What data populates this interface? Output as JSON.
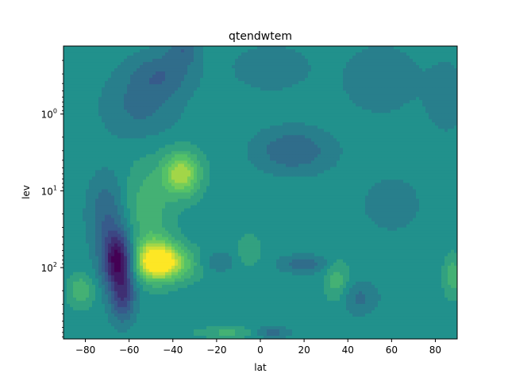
{
  "chart_data": {
    "type": "heatmap",
    "title": "qtendwtem",
    "xlabel": "lat",
    "ylabel": "lev",
    "xlim": [
      -90,
      90
    ],
    "ylim": [
      0.13,
      850
    ],
    "yscale": "log",
    "yaxis_inverted": true,
    "grid": false,
    "legend": "none",
    "colormap": "viridis",
    "colors": {
      "background": "#2a8c8c",
      "low": "#440154",
      "mid_low": "#3b528b",
      "mid": "#21918c",
      "mid_high": "#5ec962",
      "high": "#fde725"
    },
    "x_ticks": [
      {
        "value": -80,
        "label": "−80"
      },
      {
        "value": -60,
        "label": "−60"
      },
      {
        "value": -40,
        "label": "−40"
      },
      {
        "value": -20,
        "label": "−20"
      },
      {
        "value": 0,
        "label": "0"
      },
      {
        "value": 20,
        "label": "20"
      },
      {
        "value": 40,
        "label": "40"
      },
      {
        "value": 60,
        "label": "60"
      },
      {
        "value": 80,
        "label": "80"
      }
    ],
    "y_ticks": [
      {
        "value": 1,
        "base": "10",
        "exp": "0"
      },
      {
        "value": 10,
        "base": "10",
        "exp": "1"
      },
      {
        "value": 100,
        "base": "10",
        "exp": "2"
      }
    ],
    "features": [
      {
        "lat": -65,
        "lev": 80,
        "amp": -1.0,
        "sx": 5,
        "sy": 0.25
      },
      {
        "lat": -63,
        "lev": 250,
        "amp": -0.55,
        "sx": 4,
        "sy": 0.22
      },
      {
        "lat": -70,
        "lev": 20,
        "amp": -0.35,
        "sx": 6,
        "sy": 0.35
      },
      {
        "lat": -48,
        "lev": 80,
        "amp": 0.95,
        "sx": 7,
        "sy": 0.18
      },
      {
        "lat": -40,
        "lev": 90,
        "amp": 0.45,
        "sx": 9,
        "sy": 0.15
      },
      {
        "lat": -36,
        "lev": 6,
        "amp": 0.75,
        "sx": 6,
        "sy": 0.2
      },
      {
        "lat": -52,
        "lev": 18,
        "amp": 0.3,
        "sx": 8,
        "sy": 0.45
      },
      {
        "lat": -45,
        "lev": 0.3,
        "amp": -0.3,
        "sx": 10,
        "sy": 0.2
      },
      {
        "lat": -35,
        "lev": 0.14,
        "amp": -0.3,
        "sx": 5,
        "sy": 0.15
      },
      {
        "lat": -55,
        "lev": 0.8,
        "amp": -0.25,
        "sx": 12,
        "sy": 0.3
      },
      {
        "lat": 15,
        "lev": 3,
        "amp": -0.35,
        "sx": 12,
        "sy": 0.2
      },
      {
        "lat": 5,
        "lev": 0.25,
        "amp": -0.2,
        "sx": 12,
        "sy": 0.2
      },
      {
        "lat": 55,
        "lev": 0.35,
        "amp": -0.2,
        "sx": 12,
        "sy": 0.3
      },
      {
        "lat": 85,
        "lev": 0.6,
        "amp": -0.2,
        "sx": 6,
        "sy": 0.3
      },
      {
        "lat": 20,
        "lev": 90,
        "amp": -0.3,
        "sx": 8,
        "sy": 0.08
      },
      {
        "lat": -20,
        "lev": 85,
        "amp": -0.2,
        "sx": 6,
        "sy": 0.1
      },
      {
        "lat": 45,
        "lev": 250,
        "amp": -0.25,
        "sx": 6,
        "sy": 0.15
      },
      {
        "lat": -82,
        "lev": 200,
        "amp": 0.35,
        "sx": 4,
        "sy": 0.15
      },
      {
        "lat": 35,
        "lev": 150,
        "amp": 0.3,
        "sx": 4,
        "sy": 0.2
      },
      {
        "lat": -5,
        "lev": 60,
        "amp": 0.2,
        "sx": 4,
        "sy": 0.15
      },
      {
        "lat": 88,
        "lev": 130,
        "amp": 0.3,
        "sx": 3,
        "sy": 0.2
      },
      {
        "lat": -15,
        "lev": 700,
        "amp": 0.25,
        "sx": 10,
        "sy": 0.05
      },
      {
        "lat": 5,
        "lev": 700,
        "amp": -0.3,
        "sx": 6,
        "sy": 0.05
      },
      {
        "lat": 60,
        "lev": 15,
        "amp": -0.1,
        "sx": 15,
        "sy": 0.4
      }
    ]
  }
}
